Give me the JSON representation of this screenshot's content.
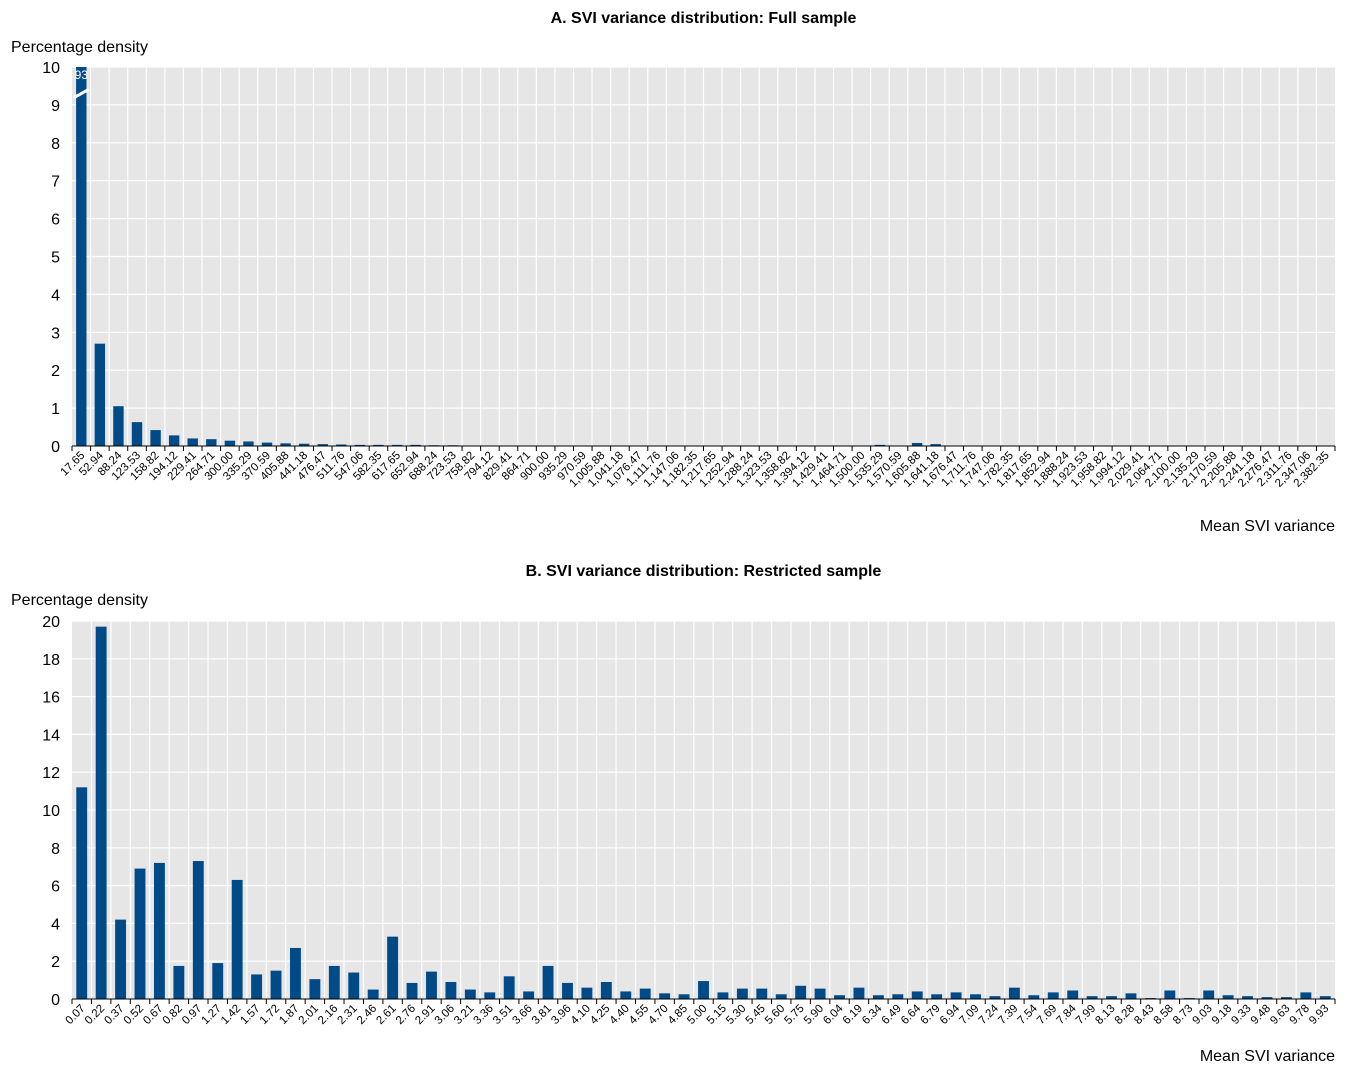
{
  "colors": {
    "bar": "#004b87",
    "plot_bg": "#e6e6e7",
    "grid": "#ffffff"
  },
  "chart_data": [
    {
      "type": "bar",
      "title": "A. SVI variance distribution: Full sample",
      "ylabel": "Percentage density",
      "xlabel": "Mean SVI variance",
      "ylim": [
        0,
        10
      ],
      "yticks": [
        0,
        1,
        2,
        3,
        4,
        5,
        6,
        7,
        8,
        9,
        10
      ],
      "grid": true,
      "axis_break": {
        "bar_index": 0,
        "label": "93"
      },
      "categories": [
        "17.65",
        "52.94",
        "88.24",
        "123.53",
        "158.82",
        "194.12",
        "229.41",
        "264.71",
        "300.00",
        "335.29",
        "370.59",
        "405.88",
        "441.18",
        "476.47",
        "511.76",
        "547.06",
        "582.35",
        "617.65",
        "652.94",
        "688.24",
        "723.53",
        "758.82",
        "794.12",
        "829.41",
        "864.71",
        "900.00",
        "935.29",
        "970.59",
        "1,005.88",
        "1,041.18",
        "1,076.47",
        "1,111.76",
        "1,147.06",
        "1,182.35",
        "1,217.65",
        "1,252.94",
        "1,288.24",
        "1,323.53",
        "1,358.82",
        "1,394.12",
        "1,429.41",
        "1,464.71",
        "1,500.00",
        "1,535.29",
        "1,570.59",
        "1,605.88",
        "1,641.18",
        "1,676.47",
        "1,711.76",
        "1,747.06",
        "1,782.35",
        "1,817.65",
        "1,852.94",
        "1,888.24",
        "1,923.53",
        "1,958.82",
        "1,994.12",
        "2,029.41",
        "2,064.71",
        "2,100.00",
        "2,135.29",
        "2,170.59",
        "2,205.88",
        "2,241.18",
        "2,276.47",
        "2,311.76",
        "2,347.06",
        "2,382.35"
      ],
      "values": [
        93,
        2.7,
        1.05,
        0.63,
        0.42,
        0.28,
        0.2,
        0.18,
        0.14,
        0.12,
        0.09,
        0.07,
        0.06,
        0.05,
        0.04,
        0.03,
        0.03,
        0.03,
        0.03,
        0.02,
        0.02,
        0.01,
        0.01,
        0.01,
        0.01,
        0.01,
        0.01,
        0.01,
        0.01,
        0.01,
        0.01,
        0.01,
        0.01,
        0.01,
        0.01,
        0.01,
        0.01,
        0.01,
        0.01,
        0.01,
        0.01,
        0.01,
        0.01,
        0.03,
        0.01,
        0.08,
        0.05,
        0.01,
        0.01,
        0.01,
        0.01,
        0.01,
        0.01,
        0.01,
        0.01,
        0.01,
        0.01,
        0.01,
        0.01,
        0.01,
        0.01,
        0.01,
        0.01,
        0.01,
        0.01,
        0.01,
        0.01,
        0.01
      ]
    },
    {
      "type": "bar",
      "title": "B. SVI variance distribution: Restricted sample",
      "ylabel": "Percentage density",
      "xlabel": "Mean SVI variance",
      "ylim": [
        0,
        20
      ],
      "yticks": [
        0,
        2,
        4,
        6,
        8,
        10,
        12,
        14,
        16,
        18,
        20
      ],
      "grid": true,
      "categories": [
        "0.07",
        "0.22",
        "0.37",
        "0.52",
        "0.67",
        "0.82",
        "0.97",
        "1.27",
        "1.42",
        "1.57",
        "1.72",
        "1.87",
        "2.01",
        "2.16",
        "2.31",
        "2.46",
        "2.61",
        "2.76",
        "2.91",
        "3.06",
        "3.21",
        "3.36",
        "3.51",
        "3.66",
        "3.81",
        "3.96",
        "4.10",
        "4.25",
        "4.40",
        "4.55",
        "4.70",
        "4.85",
        "5.00",
        "5.15",
        "5.30",
        "5.45",
        "5.60",
        "5.75",
        "5.90",
        "6.04",
        "6.19",
        "6.34",
        "6.49",
        "6.64",
        "6.79",
        "6.94",
        "7.09",
        "7.24",
        "7.39",
        "7.54",
        "7.69",
        "7.84",
        "7.99",
        "8.13",
        "8.28",
        "8.43",
        "8.58",
        "8.73",
        "9.03",
        "9.18",
        "9.33",
        "9.48",
        "9.63",
        "9.78",
        "9.93"
      ],
      "values": [
        11.2,
        19.7,
        4.2,
        6.9,
        7.2,
        1.75,
        7.3,
        1.9,
        6.3,
        1.3,
        1.5,
        2.7,
        1.05,
        1.75,
        1.4,
        0.5,
        3.3,
        0.85,
        1.45,
        0.9,
        0.5,
        0.35,
        1.2,
        0.4,
        1.75,
        0.85,
        0.6,
        0.9,
        0.4,
        0.55,
        0.3,
        0.25,
        0.95,
        0.35,
        0.55,
        0.55,
        0.25,
        0.7,
        0.55,
        0.2,
        0.6,
        0.2,
        0.25,
        0.4,
        0.25,
        0.35,
        0.25,
        0.15,
        0.6,
        0.2,
        0.35,
        0.45,
        0.15,
        0.15,
        0.3,
        0.05,
        0.45,
        0.05,
        0.45,
        0.2,
        0.15,
        0.1,
        0.1,
        0.35,
        0.15
      ]
    }
  ]
}
